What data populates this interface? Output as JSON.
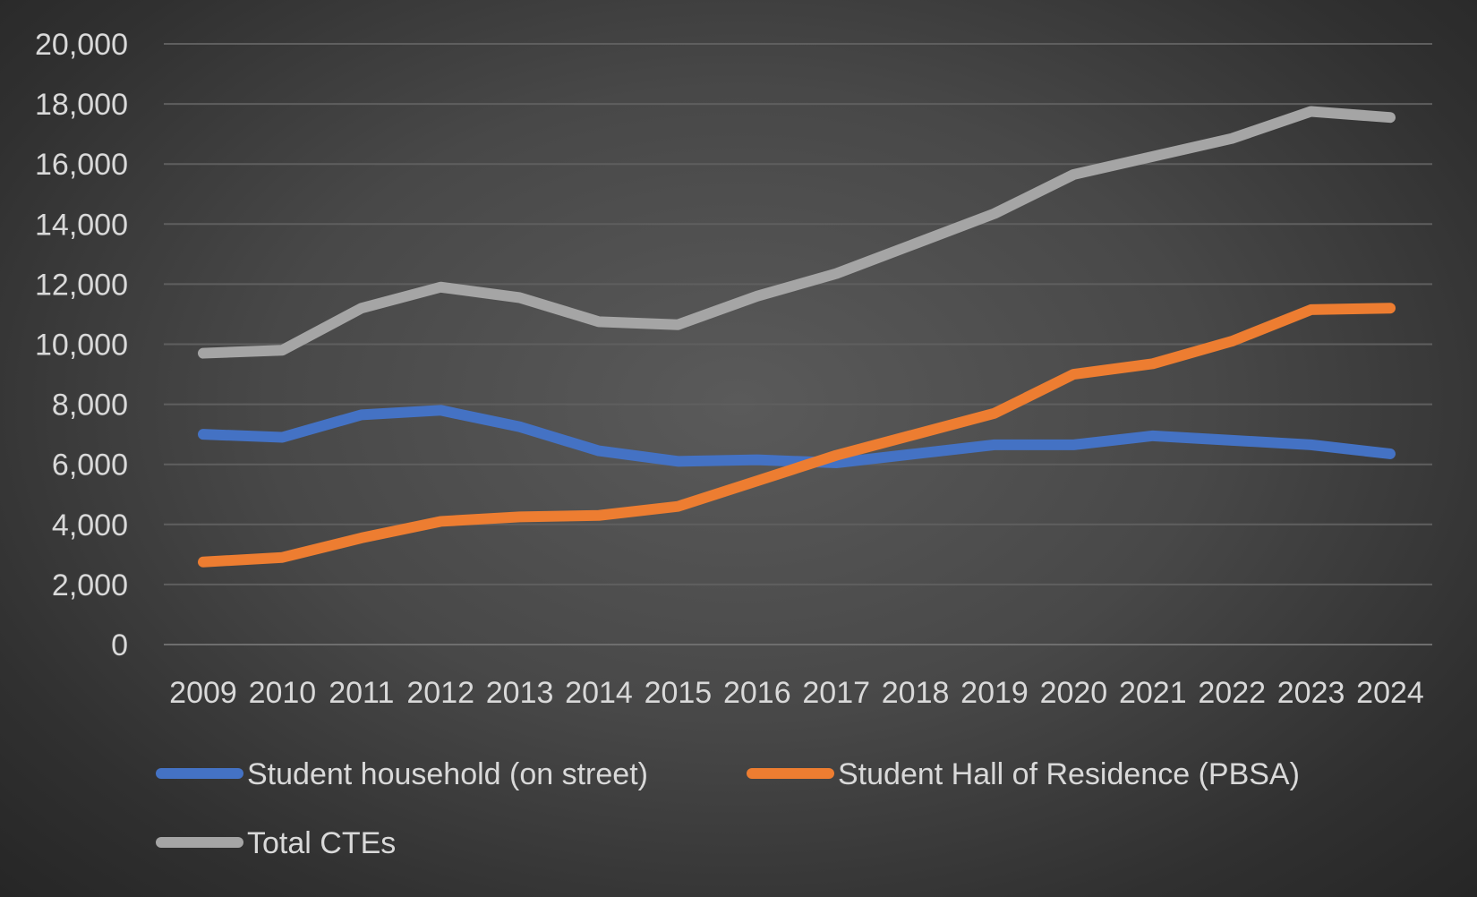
{
  "chart_data": {
    "type": "line",
    "title": "",
    "xlabel": "",
    "ylabel": "",
    "x": [
      "2009",
      "2010",
      "2011",
      "2012",
      "2013",
      "2014",
      "2015",
      "2016",
      "2017",
      "2018",
      "2019",
      "2020",
      "2021",
      "2022",
      "2023",
      "2024"
    ],
    "ylim": [
      0,
      20000
    ],
    "yticks": [
      "0",
      "2,000",
      "4,000",
      "6,000",
      "8,000",
      "10,000",
      "12,000",
      "14,000",
      "16,000",
      "18,000",
      "20,000"
    ],
    "grid": true,
    "legend_position": "bottom",
    "series": [
      {
        "name": "Student household (on street)",
        "color": "#4472c4",
        "values": [
          7000,
          6900,
          7650,
          7800,
          7250,
          6450,
          6100,
          6150,
          6050,
          6350,
          6650,
          6650,
          6950,
          6800,
          6650,
          6350
        ]
      },
      {
        "name": "Student Hall of Residence (PBSA)",
        "color": "#ed7d31",
        "values": [
          2750,
          2900,
          3550,
          4100,
          4250,
          4300,
          4600,
          5450,
          6300,
          7000,
          7700,
          9000,
          9350,
          10100,
          11150,
          11200
        ]
      },
      {
        "name": "Total CTEs",
        "color": "#a5a5a5",
        "values": [
          9700,
          9800,
          11200,
          11900,
          11550,
          10750,
          10650,
          11600,
          12350,
          13350,
          14350,
          15650,
          16250,
          16850,
          17750,
          17550
        ]
      }
    ]
  }
}
